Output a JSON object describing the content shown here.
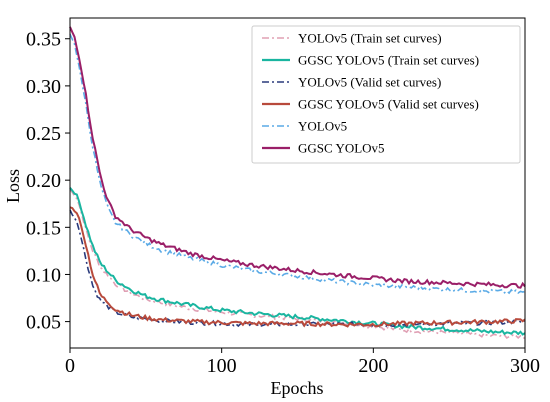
{
  "chart_data": {
    "type": "line",
    "xlabel": "Epochs",
    "ylabel": "Loss",
    "xlim": [
      0,
      300
    ],
    "ylim": [
      0.022,
      0.372
    ],
    "x_ticks": [
      0,
      100,
      200,
      300
    ],
    "x_tick_labels": [
      "0",
      "100",
      "200",
      "300"
    ],
    "y_ticks": [
      0.05,
      0.1,
      0.15,
      0.2,
      0.25,
      0.3,
      0.35
    ],
    "y_tick_labels": [
      "0.05",
      "0.10",
      "0.15",
      "0.20",
      "0.25",
      "0.30",
      "0.35"
    ],
    "grid": false,
    "legend_position": "top-right",
    "series": [
      {
        "name": "YOLOv5 (Train set curves)",
        "color": "#e0a0b4",
        "style": "dashdot",
        "x": [
          0,
          5,
          10,
          15,
          20,
          30,
          40,
          50,
          60,
          80,
          100,
          120,
          150,
          180,
          200,
          220,
          250,
          280,
          300
        ],
        "y": [
          0.19,
          0.18,
          0.15,
          0.125,
          0.108,
          0.09,
          0.08,
          0.074,
          0.07,
          0.064,
          0.06,
          0.057,
          0.053,
          0.049,
          0.045,
          0.041,
          0.038,
          0.035,
          0.034
        ]
      },
      {
        "name": "GGSC YOLOv5 (Train set curves)",
        "color": "#1ab5a0",
        "style": "solid",
        "x": [
          0,
          5,
          10,
          15,
          20,
          30,
          40,
          50,
          60,
          80,
          100,
          120,
          150,
          180,
          200,
          220,
          250,
          280,
          300
        ],
        "y": [
          0.192,
          0.183,
          0.155,
          0.13,
          0.112,
          0.094,
          0.084,
          0.077,
          0.073,
          0.067,
          0.062,
          0.059,
          0.055,
          0.051,
          0.048,
          0.045,
          0.042,
          0.039,
          0.038
        ]
      },
      {
        "name": "YOLOv5 (Valid set curves)",
        "color": "#2a3a7c",
        "style": "dashdot",
        "x": [
          0,
          5,
          10,
          15,
          20,
          30,
          40,
          50,
          60,
          80,
          100,
          120,
          150,
          180,
          200,
          220,
          250,
          280,
          300
        ],
        "y": [
          0.168,
          0.155,
          0.12,
          0.088,
          0.072,
          0.06,
          0.055,
          0.053,
          0.051,
          0.049,
          0.048,
          0.047,
          0.047,
          0.047,
          0.047,
          0.047,
          0.048,
          0.049,
          0.05
        ]
      },
      {
        "name": "GGSC YOLOv5 (Valid set curves)",
        "color": "#b84a3c",
        "style": "solid",
        "x": [
          0,
          5,
          10,
          15,
          20,
          30,
          40,
          50,
          60,
          80,
          100,
          120,
          150,
          180,
          200,
          220,
          250,
          280,
          300
        ],
        "y": [
          0.172,
          0.165,
          0.135,
          0.1,
          0.078,
          0.063,
          0.057,
          0.054,
          0.052,
          0.05,
          0.049,
          0.048,
          0.048,
          0.047,
          0.047,
          0.048,
          0.049,
          0.05,
          0.051
        ]
      },
      {
        "name": "YOLOv5",
        "color": "#5aaae6",
        "style": "dashdot",
        "x": [
          0,
          3,
          6,
          10,
          15,
          20,
          25,
          30,
          40,
          50,
          60,
          80,
          100,
          120,
          150,
          180,
          200,
          220,
          250,
          280,
          300
        ],
        "y": [
          0.355,
          0.345,
          0.32,
          0.285,
          0.235,
          0.195,
          0.17,
          0.155,
          0.142,
          0.133,
          0.126,
          0.117,
          0.11,
          0.104,
          0.098,
          0.092,
          0.089,
          0.087,
          0.084,
          0.082,
          0.081
        ]
      },
      {
        "name": "GGSC YOLOv5",
        "color": "#9a1f68",
        "style": "solid",
        "x": [
          0,
          3,
          6,
          10,
          15,
          20,
          25,
          30,
          40,
          50,
          60,
          80,
          100,
          120,
          150,
          180,
          200,
          220,
          250,
          280,
          300
        ],
        "y": [
          0.362,
          0.352,
          0.33,
          0.295,
          0.245,
          0.205,
          0.178,
          0.162,
          0.148,
          0.139,
          0.132,
          0.122,
          0.115,
          0.11,
          0.104,
          0.099,
          0.096,
          0.093,
          0.091,
          0.089,
          0.088
        ]
      }
    ]
  }
}
